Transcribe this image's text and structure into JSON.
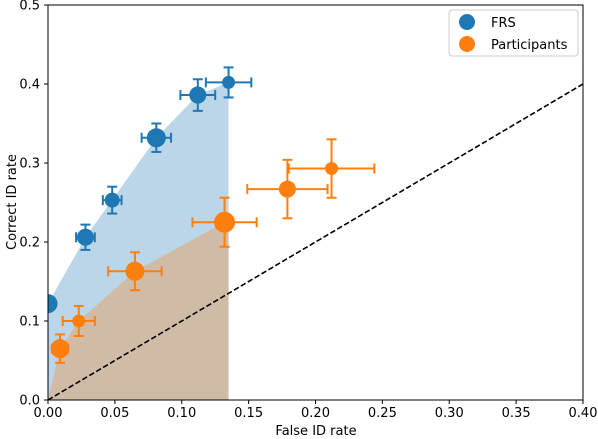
{
  "chart_data": {
    "type": "scatter",
    "title": "",
    "xlabel": "False ID rate",
    "ylabel": "Correct ID rate",
    "xlim": [
      0,
      0.4
    ],
    "ylim": [
      0,
      0.5
    ],
    "xticks": [
      "0.00",
      "0.05",
      "0.10",
      "0.15",
      "0.20",
      "0.25",
      "0.30",
      "0.35",
      "0.40"
    ],
    "yticks": [
      "0.0",
      "0.1",
      "0.2",
      "0.3",
      "0.4",
      "0.5"
    ],
    "grid": false,
    "legend_position": "upper right",
    "reference_line": {
      "x": [
        0,
        0.4
      ],
      "y": [
        0,
        0.4
      ],
      "style": "dashed",
      "color": "#000000"
    },
    "series": [
      {
        "name": "FRS",
        "color": "#1f77b4",
        "fill": true,
        "points": [
          {
            "x": 0.0,
            "y": 0.122,
            "xerr": 0,
            "yerr": 0
          },
          {
            "x": 0.028,
            "y": 0.206,
            "xerr": 0.007,
            "yerr": 0.016
          },
          {
            "x": 0.048,
            "y": 0.253,
            "xerr": 0.007,
            "yerr": 0.017
          },
          {
            "x": 0.081,
            "y": 0.332,
            "xerr": 0.011,
            "yerr": 0.018
          },
          {
            "x": 0.112,
            "y": 0.386,
            "xerr": 0.013,
            "yerr": 0.02
          },
          {
            "x": 0.135,
            "y": 0.402,
            "xerr": 0.017,
            "yerr": 0.019
          }
        ]
      },
      {
        "name": "Participants",
        "color": "#ff7f0e",
        "fill": true,
        "points": [
          {
            "x": 0.009,
            "y": 0.065,
            "xerr": 0.006,
            "yerr": 0.018
          },
          {
            "x": 0.023,
            "y": 0.1,
            "xerr": 0.012,
            "yerr": 0.019
          },
          {
            "x": 0.065,
            "y": 0.163,
            "xerr": 0.02,
            "yerr": 0.024
          },
          {
            "x": 0.132,
            "y": 0.225,
            "xerr": 0.024,
            "yerr": 0.031
          },
          {
            "x": 0.179,
            "y": 0.267,
            "xerr": 0.03,
            "yerr": 0.037
          },
          {
            "x": 0.212,
            "y": 0.293,
            "xerr": 0.032,
            "yerr": 0.037
          }
        ]
      }
    ]
  }
}
